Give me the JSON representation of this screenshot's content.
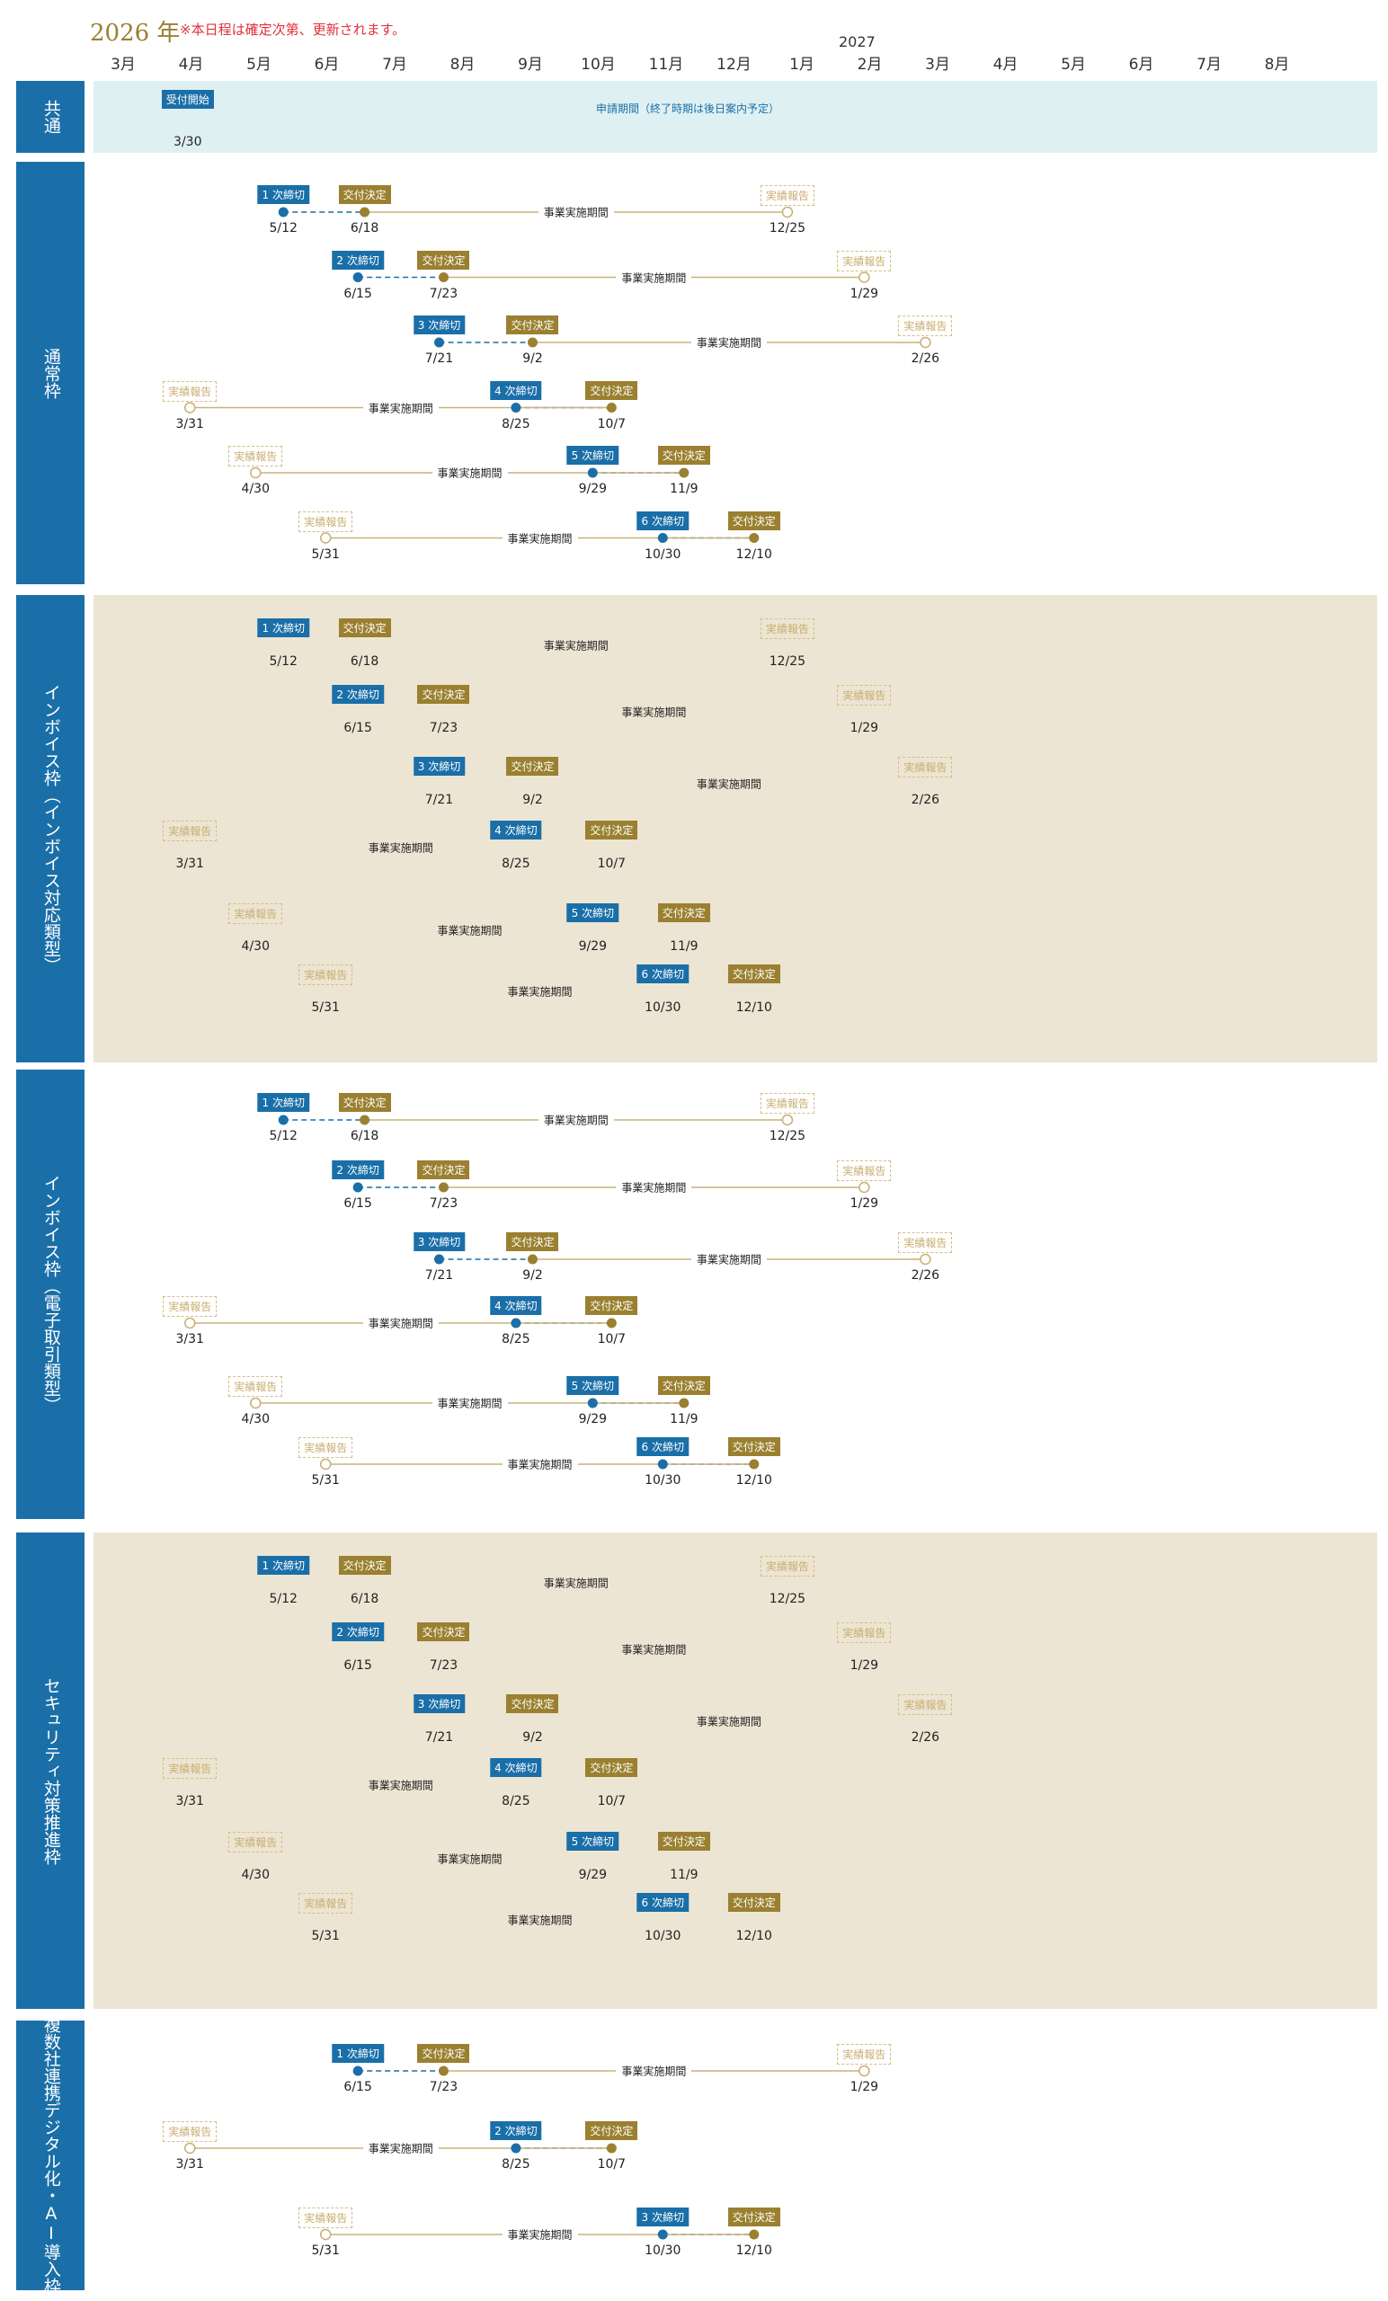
{
  "header": {
    "year": "2026 年",
    "note": "※本日程は確定次第、更新されます。",
    "next_year": "2027",
    "months": [
      "3月",
      "4月",
      "5月",
      "6月",
      "7月",
      "8月",
      "9月",
      "10月",
      "11月",
      "12月",
      "1月",
      "2月",
      "3月",
      "4月",
      "5月",
      "6月",
      "7月",
      "8月"
    ]
  },
  "common": {
    "label": "共通",
    "start_tag": "受付開始",
    "start_date": "3/30",
    "period": "申請期間（終了時期は後日案内予定）"
  },
  "labels": {
    "kaisu": " 次締切",
    "kofu": "交付決定",
    "jitsu": "事業実施期間",
    "report": "実績報告"
  },
  "colors": {
    "blue": "#1a6fa8",
    "gold": "#9a8030",
    "light": "#dff0f3",
    "tan": "#ede5d3"
  },
  "sections": [
    {
      "label": "通常枠",
      "tan": false,
      "rows": [
        {
          "num": "1",
          "deadline": "5/12",
          "decision": "6/18",
          "report": "12/25"
        },
        {
          "num": "2",
          "deadline": "6/15",
          "decision": "7/23",
          "report": "1/29"
        },
        {
          "num": "3",
          "deadline": "7/21",
          "decision": "9/2",
          "report": "2/26"
        },
        {
          "num": "4",
          "deadline": "8/25",
          "decision": "10/7",
          "report": "3/31"
        },
        {
          "num": "5",
          "deadline": "9/29",
          "decision": "11/9",
          "report": "4/30"
        },
        {
          "num": "6",
          "deadline": "10/30",
          "decision": "12/10",
          "report": "5/31"
        }
      ]
    },
    {
      "label": "インボイス枠（インボイス対応類型）",
      "tan": true,
      "rows": [
        {
          "num": "1",
          "deadline": "5/12",
          "decision": "6/18",
          "report": "12/25"
        },
        {
          "num": "2",
          "deadline": "6/15",
          "decision": "7/23",
          "report": "1/29"
        },
        {
          "num": "3",
          "deadline": "7/21",
          "decision": "9/2",
          "report": "2/26"
        },
        {
          "num": "4",
          "deadline": "8/25",
          "decision": "10/7",
          "report": "3/31"
        },
        {
          "num": "5",
          "deadline": "9/29",
          "decision": "11/9",
          "report": "4/30"
        },
        {
          "num": "6",
          "deadline": "10/30",
          "decision": "12/10",
          "report": "5/31"
        }
      ]
    },
    {
      "label": "インボイス枠（電子取引類型）",
      "tan": false,
      "rows": [
        {
          "num": "1",
          "deadline": "5/12",
          "decision": "6/18",
          "report": "12/25"
        },
        {
          "num": "2",
          "deadline": "6/15",
          "decision": "7/23",
          "report": "1/29"
        },
        {
          "num": "3",
          "deadline": "7/21",
          "decision": "9/2",
          "report": "2/26"
        },
        {
          "num": "4",
          "deadline": "8/25",
          "decision": "10/7",
          "report": "3/31"
        },
        {
          "num": "5",
          "deadline": "9/29",
          "decision": "11/9",
          "report": "4/30"
        },
        {
          "num": "6",
          "deadline": "10/30",
          "decision": "12/10",
          "report": "5/31"
        }
      ]
    },
    {
      "label": "セキュリティ対策推進枠",
      "tan": true,
      "rows": [
        {
          "num": "1",
          "deadline": "5/12",
          "decision": "6/18",
          "report": "12/25"
        },
        {
          "num": "2",
          "deadline": "6/15",
          "decision": "7/23",
          "report": "1/29"
        },
        {
          "num": "3",
          "deadline": "7/21",
          "decision": "9/2",
          "report": "2/26"
        },
        {
          "num": "4",
          "deadline": "8/25",
          "decision": "10/7",
          "report": "3/31"
        },
        {
          "num": "5",
          "deadline": "9/29",
          "decision": "11/9",
          "report": "4/30"
        },
        {
          "num": "6",
          "deadline": "10/30",
          "decision": "12/10",
          "report": "5/31"
        }
      ]
    },
    {
      "label": "複数社連携デジタル化・AI導入枠",
      "tan": false,
      "rows": [
        {
          "num": "1",
          "deadline": "6/15",
          "decision": "7/23",
          "report": "1/29"
        },
        {
          "num": "2",
          "deadline": "8/25",
          "decision": "10/7",
          "report": "3/31"
        },
        {
          "num": "3",
          "deadline": "10/30",
          "decision": "12/10",
          "report": "5/31"
        }
      ]
    }
  ]
}
